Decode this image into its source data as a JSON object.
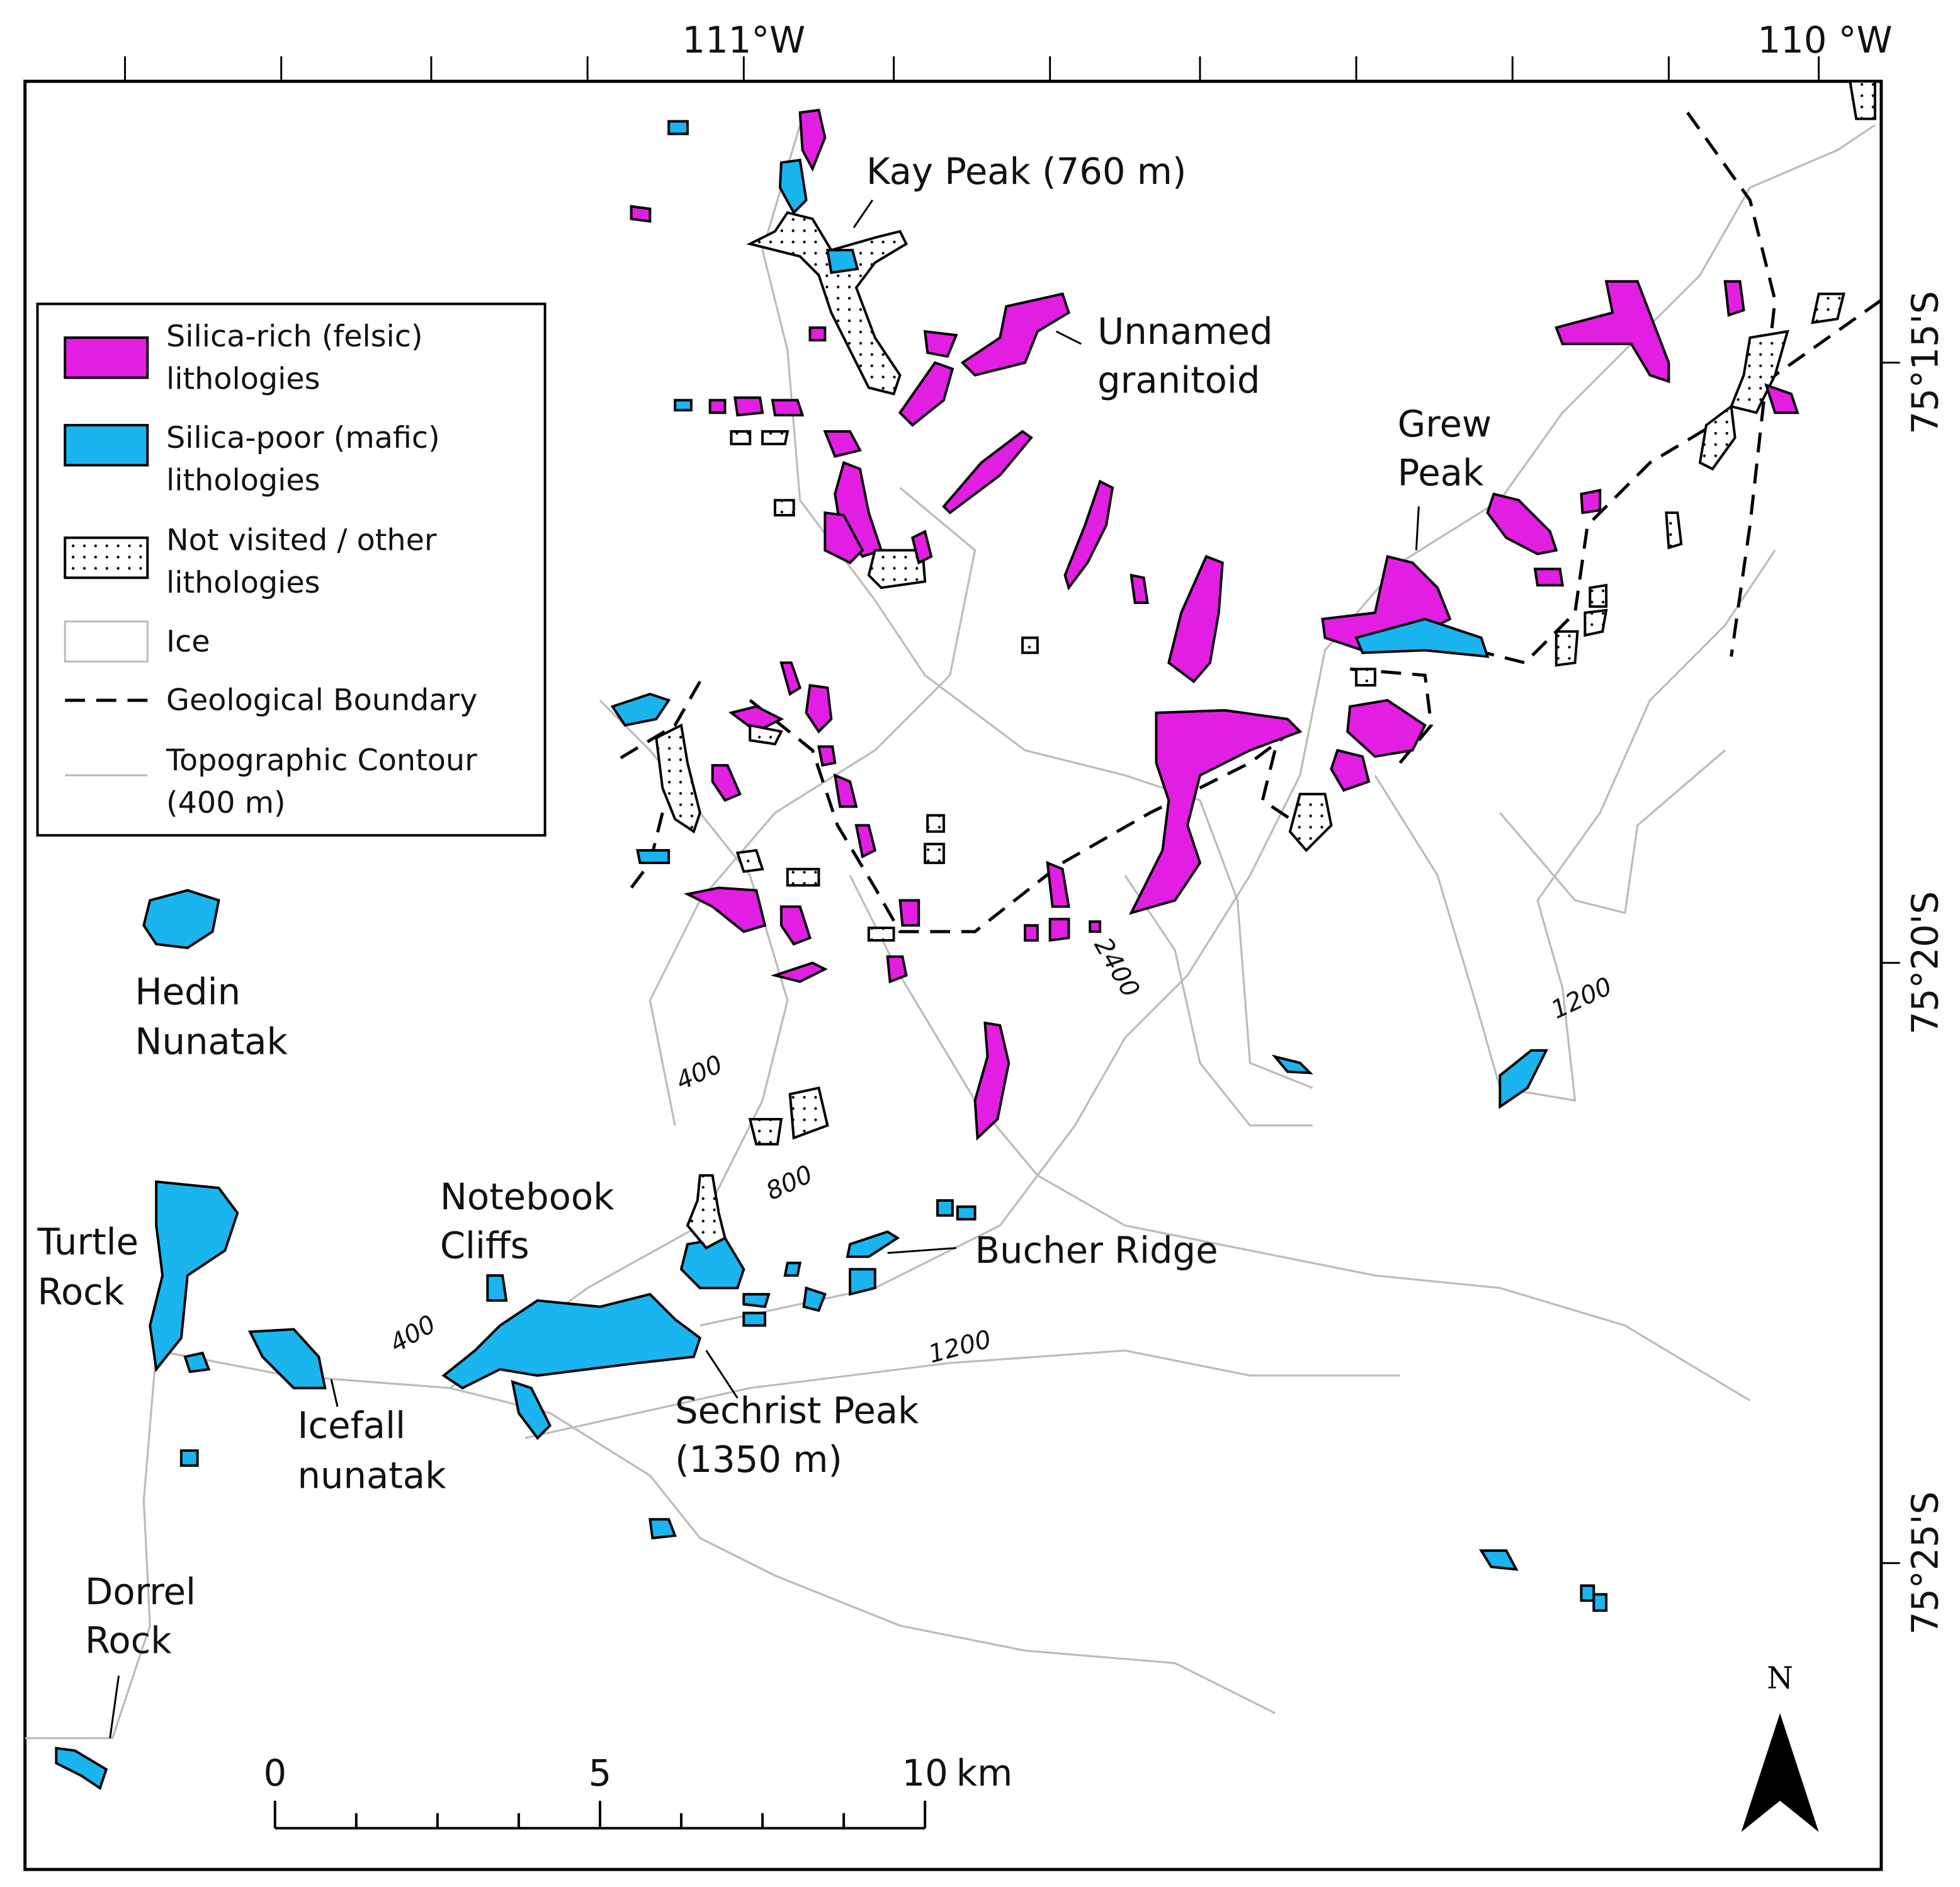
{
  "map": {
    "longitude_labels": [
      "111°W",
      "110 °W"
    ],
    "latitude_labels": [
      "75°15'S",
      "75°20'S",
      "75°25'S"
    ],
    "legend": [
      {
        "lines": [
          "Silica-rich (felsic)",
          "lithologies"
        ]
      },
      {
        "lines": [
          "Silica-poor (mafic)",
          "lithologies"
        ]
      },
      {
        "lines": [
          "Not visited / other",
          "lithologies"
        ]
      },
      {
        "lines": [
          "Ice"
        ]
      },
      {
        "lines": [
          "Geological Boundary"
        ]
      },
      {
        "lines": [
          "Topographic Contour",
          "(400 m)"
        ]
      }
    ],
    "place_labels": [
      {
        "lines": [
          "Kay Peak (760 m)"
        ]
      },
      {
        "lines": [
          "Unnamed",
          "granitoid"
        ]
      },
      {
        "lines": [
          "Grew",
          "Peak"
        ]
      },
      {
        "lines": [
          "Hedin",
          "Nunatak"
        ]
      },
      {
        "lines": [
          "Turtle",
          "Rock"
        ]
      },
      {
        "lines": [
          "Notebook",
          "Cliffs"
        ]
      },
      {
        "lines": [
          "Bucher Ridge"
        ]
      },
      {
        "lines": [
          "Sechrist Peak",
          "(1350 m)"
        ]
      },
      {
        "lines": [
          "Icefall",
          "nunatak"
        ]
      },
      {
        "lines": [
          "Dorrel",
          "Rock"
        ]
      }
    ],
    "contour_labels": [
      "400",
      "800",
      "400",
      "1200",
      "1200",
      "2400"
    ],
    "scale_bar": {
      "labels": [
        "0",
        "5",
        "10"
      ],
      "unit": "km"
    },
    "north_arrow": "N"
  }
}
